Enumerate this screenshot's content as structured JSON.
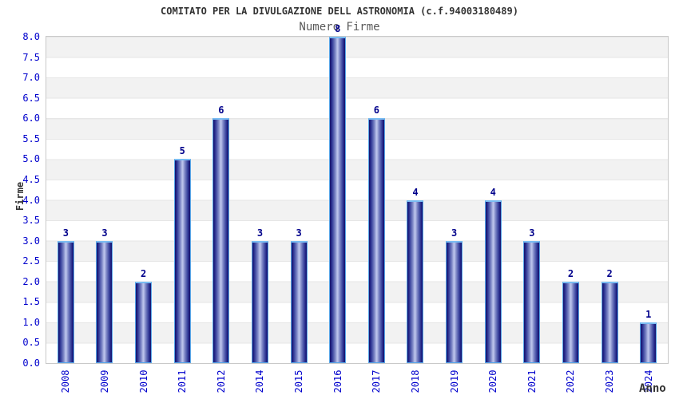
{
  "chart_data": {
    "type": "bar",
    "title": "COMITATO PER LA DIVULGAZIONE DELL ASTRONOMIA (c.f.94003180489)",
    "subtitle": "Numero Firme",
    "xlabel": "Anno",
    "ylabel": "Firme",
    "categories": [
      "2008",
      "2009",
      "2010",
      "2011",
      "2012",
      "2014",
      "2015",
      "2016",
      "2017",
      "2018",
      "2019",
      "2020",
      "2021",
      "2022",
      "2023",
      "2024"
    ],
    "values": [
      3,
      3,
      2,
      5,
      6,
      3,
      3,
      8,
      6,
      4,
      3,
      4,
      3,
      2,
      2,
      1
    ],
    "ylim": [
      0,
      8
    ],
    "ytick_step": 0.5,
    "ytick_decimals": 1,
    "grid": "alternating-horizontal-bands",
    "legend": "none",
    "bar_value_labels_shown": true,
    "colors": {
      "bar_dark": "#15156b",
      "bar_light": "#bac2ea",
      "bar_edge": "#58a6e8",
      "bar_cap": "#79bcf2",
      "tick_label": "#0000cd",
      "value_label": "#00008b",
      "title": "#333333",
      "subtitle": "#5a5a5a",
      "axis_label": "#333333",
      "band_gray": "#f2f2f2",
      "band_white": "#ffffff",
      "plot_border": "#c9c9c9"
    }
  }
}
